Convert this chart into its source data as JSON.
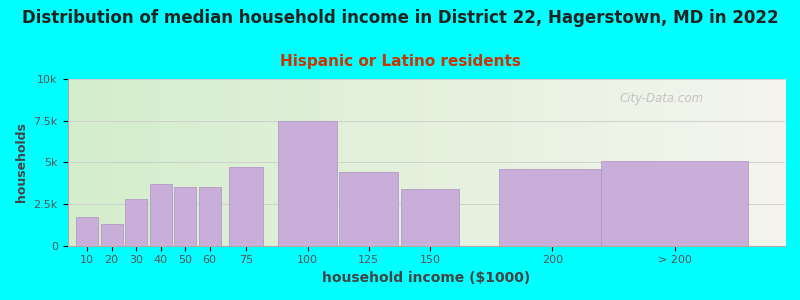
{
  "title": "Distribution of median household income in District 22, Hagerstown, MD in 2022",
  "subtitle": "Hispanic or Latino residents",
  "xlabel": "household income ($1000)",
  "ylabel": "households",
  "background_color": "#00FFFF",
  "bar_color": "#c8aed8",
  "bar_edge_color": "#b090c0",
  "categories": [
    "10",
    "20",
    "30",
    "40",
    "50",
    "60",
    "75",
    "100",
    "125",
    "150",
    "200",
    "> 200"
  ],
  "x_positions": [
    10,
    20,
    30,
    40,
    50,
    60,
    75,
    100,
    125,
    150,
    200,
    250
  ],
  "bar_widths": [
    9,
    9,
    9,
    9,
    9,
    9,
    14,
    24,
    24,
    24,
    44,
    60
  ],
  "values": [
    1700,
    1300,
    2800,
    3700,
    3500,
    3500,
    4700,
    7500,
    4400,
    3400,
    4600,
    5100
  ],
  "xlim": [
    2,
    295
  ],
  "ylim": [
    0,
    10000
  ],
  "yticks": [
    0,
    2500,
    5000,
    7500,
    10000
  ],
  "ytick_labels": [
    "0",
    "2.5k",
    "5k",
    "7.5k",
    "10k"
  ],
  "xtick_positions": [
    10,
    20,
    30,
    40,
    50,
    60,
    75,
    100,
    125,
    150,
    200,
    250
  ],
  "xtick_labels": [
    "10",
    "20",
    "30",
    "40",
    "50",
    "60",
    "75",
    "100",
    "125",
    "150",
    "200",
    "> 200"
  ],
  "title_fontsize": 12,
  "subtitle_fontsize": 11,
  "subtitle_color": "#cc3300",
  "title_color": "#222222",
  "watermark": "City-Data.com",
  "grad_left_color": "#d4edcc",
  "grad_right_color": "#f5f5ee"
}
